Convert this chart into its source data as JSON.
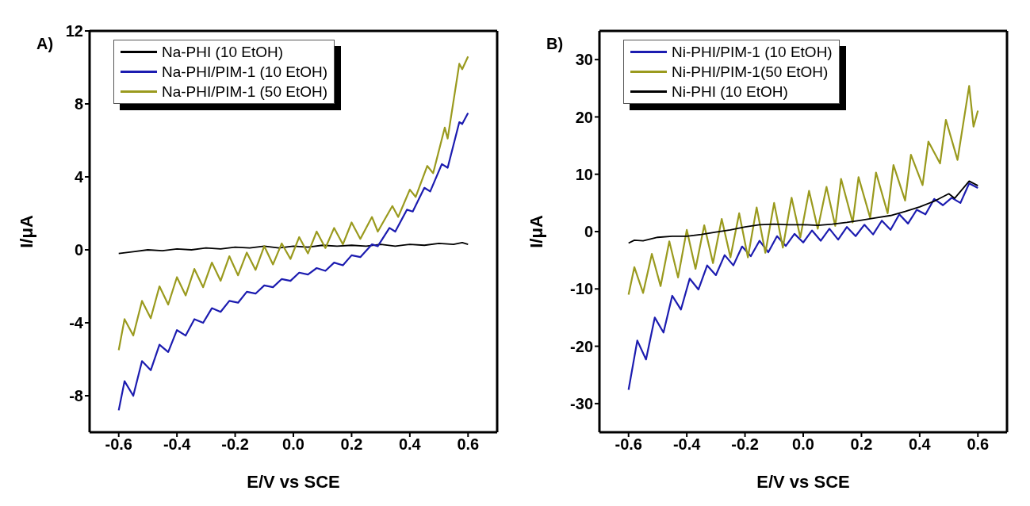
{
  "chart_data": [
    {
      "type": "line",
      "title": "A)",
      "xlabel": "E/V vs SCE",
      "ylabel": "I/μA",
      "xlim": [
        -0.7,
        0.7
      ],
      "xticks": [
        -0.6,
        -0.4,
        -0.2,
        {
          "value": 0,
          "label": "0.0"
        },
        0.2,
        0.4,
        0.6
      ],
      "ylim": [
        -10,
        12
      ],
      "yticks": [
        -8,
        -4,
        0,
        4,
        8,
        12
      ],
      "legend": "top left",
      "grid": false,
      "marker": "none",
      "line_style": "solid",
      "series": [
        {
          "name": "Na-PHI (10 EtOH)",
          "color": "#000000",
          "x": [
            -0.6,
            -0.55,
            -0.5,
            -0.45,
            -0.4,
            -0.35,
            -0.3,
            -0.25,
            -0.2,
            -0.15,
            -0.1,
            -0.05,
            0,
            0.05,
            0.1,
            0.15,
            0.2,
            0.25,
            0.3,
            0.35,
            0.4,
            0.45,
            0.5,
            0.55,
            0.58,
            0.6
          ],
          "values": [
            -0.2,
            -0.1,
            0.0,
            -0.05,
            0.05,
            0.0,
            0.1,
            0.05,
            0.15,
            0.1,
            0.2,
            0.1,
            0.2,
            0.15,
            0.25,
            0.2,
            0.25,
            0.2,
            0.3,
            0.2,
            0.3,
            0.25,
            0.35,
            0.3,
            0.4,
            0.3
          ]
        },
        {
          "name": "Na-PHI/PIM-1 (10 EtOH)",
          "color": "#1c1cb0",
          "x": [
            -0.6,
            -0.58,
            -0.55,
            -0.52,
            -0.49,
            -0.46,
            -0.43,
            -0.4,
            -0.37,
            -0.34,
            -0.31,
            -0.28,
            -0.25,
            -0.22,
            -0.19,
            -0.16,
            -0.13,
            -0.1,
            -0.07,
            -0.04,
            -0.01,
            0.02,
            0.05,
            0.08,
            0.11,
            0.14,
            0.17,
            0.2,
            0.23,
            0.27,
            0.29,
            0.33,
            0.35,
            0.39,
            0.41,
            0.45,
            0.47,
            0.51,
            0.53,
            0.57,
            0.58,
            0.6
          ],
          "values": [
            -8.8,
            -7.2,
            -8.0,
            -6.1,
            -6.6,
            -5.2,
            -5.6,
            -4.4,
            -4.7,
            -3.8,
            -4.0,
            -3.2,
            -3.4,
            -2.8,
            -2.9,
            -2.3,
            -2.4,
            -1.95,
            -2.05,
            -1.6,
            -1.7,
            -1.25,
            -1.35,
            -1.0,
            -1.15,
            -0.7,
            -0.85,
            -0.3,
            -0.4,
            0.3,
            0.2,
            1.2,
            1.0,
            2.2,
            2.1,
            3.4,
            3.2,
            4.7,
            4.5,
            7.0,
            6.9,
            7.5
          ]
        },
        {
          "name": "Na-PHI/PIM-1 (50 EtOH)",
          "color": "#9a9a1e",
          "x": [
            -0.6,
            -0.58,
            -0.55,
            -0.52,
            -0.49,
            -0.46,
            -0.43,
            -0.4,
            -0.37,
            -0.34,
            -0.31,
            -0.28,
            -0.25,
            -0.22,
            -0.19,
            -0.16,
            -0.13,
            -0.1,
            -0.07,
            -0.04,
            -0.01,
            0.02,
            0.05,
            0.08,
            0.11,
            0.14,
            0.17,
            0.2,
            0.23,
            0.27,
            0.29,
            0.34,
            0.36,
            0.4,
            0.42,
            0.46,
            0.48,
            0.52,
            0.53,
            0.57,
            0.58,
            0.6
          ],
          "values": [
            -5.5,
            -3.8,
            -4.7,
            -2.8,
            -3.75,
            -2.0,
            -3.0,
            -1.5,
            -2.5,
            -1.05,
            -2.05,
            -0.7,
            -1.7,
            -0.35,
            -1.4,
            -0.15,
            -1.1,
            0.2,
            -0.8,
            0.35,
            -0.5,
            0.7,
            -0.2,
            1.0,
            0.1,
            1.2,
            0.3,
            1.5,
            0.6,
            1.8,
            1.0,
            2.4,
            1.8,
            3.3,
            2.9,
            4.6,
            4.2,
            6.7,
            6.1,
            10.2,
            9.9,
            10.6
          ]
        }
      ]
    },
    {
      "type": "line",
      "title": "B)",
      "xlabel": "E/V vs SCE",
      "ylabel": "I/μA",
      "xlim": [
        -0.7,
        0.7
      ],
      "xticks": [
        -0.6,
        -0.4,
        -0.2,
        {
          "value": 0,
          "label": "0.0"
        },
        0.2,
        0.4,
        0.6
      ],
      "ylim": [
        -35,
        35
      ],
      "yticks": [
        -30,
        -20,
        -10,
        0,
        10,
        20,
        30
      ],
      "legend": "top left",
      "grid": false,
      "marker": "none",
      "line_style": "solid",
      "series": [
        {
          "name": "Ni-PHI/PIM-1 (10 EtOH)",
          "color": "#1c1cb0",
          "x": [
            -0.6,
            -0.57,
            -0.54,
            -0.51,
            -0.48,
            -0.45,
            -0.42,
            -0.39,
            -0.36,
            -0.33,
            -0.3,
            -0.27,
            -0.24,
            -0.21,
            -0.18,
            -0.15,
            -0.12,
            -0.09,
            -0.06,
            -0.03,
            0,
            0.03,
            0.06,
            0.09,
            0.12,
            0.15,
            0.18,
            0.21,
            0.24,
            0.27,
            0.3,
            0.33,
            0.36,
            0.39,
            0.42,
            0.45,
            0.48,
            0.51,
            0.54,
            0.57,
            0.6
          ],
          "values": [
            -27.6,
            -19,
            -22.3,
            -15,
            -17.6,
            -11.2,
            -13.6,
            -8.2,
            -10.1,
            -5.9,
            -7.6,
            -4.1,
            -5.9,
            -2.6,
            -4.3,
            -1.6,
            -3.6,
            -0.8,
            -2.5,
            -0.4,
            -1.9,
            0.2,
            -1.6,
            0.5,
            -1.4,
            0.8,
            -0.8,
            1.2,
            -0.5,
            1.9,
            0.3,
            3.0,
            1.4,
            3.8,
            3.0,
            5.7,
            4.6,
            5.9,
            5.0,
            8.4,
            7.6
          ]
        },
        {
          "name": "Ni-PHI/PIM-1(50 EtOH)",
          "color": "#9a9a1e",
          "x": [
            -0.6,
            -0.58,
            -0.55,
            -0.52,
            -0.49,
            -0.46,
            -0.43,
            -0.4,
            -0.37,
            -0.34,
            -0.31,
            -0.28,
            -0.25,
            -0.22,
            -0.19,
            -0.16,
            -0.13,
            -0.1,
            -0.07,
            -0.04,
            -0.01,
            0.02,
            0.05,
            0.08,
            0.11,
            0.13,
            0.17,
            0.19,
            0.23,
            0.25,
            0.29,
            0.31,
            0.35,
            0.37,
            0.41,
            0.43,
            0.47,
            0.49,
            0.53,
            0.57,
            0.585,
            0.6
          ],
          "values": [
            -11,
            -6.2,
            -10.7,
            -3.9,
            -9.5,
            -1.7,
            -8,
            0.3,
            -6.5,
            1.1,
            -5.5,
            2.2,
            -4.5,
            3.2,
            -4.5,
            4.2,
            -3.7,
            5.0,
            -2.8,
            5.9,
            -1.0,
            7.1,
            0.5,
            7.8,
            1.0,
            9.2,
            1.6,
            9.5,
            2.4,
            10.3,
            3.2,
            11.6,
            5.4,
            13.4,
            8.1,
            15.7,
            11.9,
            19.5,
            12.5,
            25.4,
            18.3,
            21.1
          ]
        },
        {
          "name": "Ni-PHI (10 EtOH)",
          "color": "#000000",
          "x": [
            -0.6,
            -0.58,
            -0.55,
            -0.5,
            -0.45,
            -0.4,
            -0.35,
            -0.3,
            -0.25,
            -0.2,
            -0.15,
            -0.1,
            -0.05,
            0,
            0.05,
            0.1,
            0.15,
            0.2,
            0.25,
            0.3,
            0.35,
            0.4,
            0.45,
            0.5,
            0.52,
            0.55,
            0.57,
            0.6
          ],
          "values": [
            -2.0,
            -1.5,
            -1.6,
            -1.0,
            -0.8,
            -0.8,
            -0.5,
            -0.1,
            0.3,
            0.8,
            1.2,
            1.3,
            1.2,
            1.2,
            1.1,
            1.3,
            1.6,
            2.0,
            2.4,
            2.8,
            3.5,
            4.3,
            5.3,
            6.6,
            5.8,
            7.6,
            8.8,
            8.0
          ]
        }
      ]
    }
  ]
}
